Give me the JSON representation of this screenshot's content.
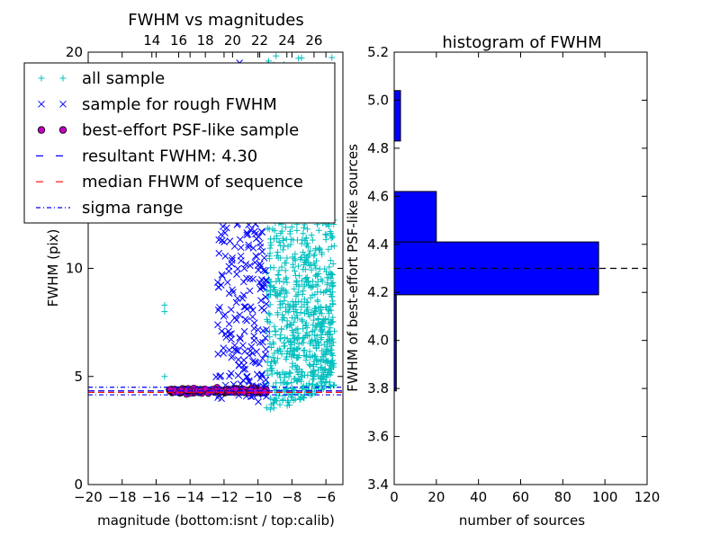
{
  "chart_data": [
    {
      "type": "scatter",
      "title": "FWHM vs magnitudes",
      "xlabel": "magnitude (bottom:isnt / top:calib)",
      "ylabel": "FWHM (pix)",
      "xlim": [
        -20,
        -5
      ],
      "ylim": [
        0,
        20
      ],
      "x_ticks": [
        "−20",
        "−18",
        "−16",
        "−14",
        "−12",
        "−10",
        "−8",
        "−6"
      ],
      "x_tick_values": [
        -20,
        -18,
        -16,
        -14,
        -12,
        -10,
        -8,
        -6
      ],
      "y_ticks": [
        "0",
        "5",
        "10",
        "20"
      ],
      "y_tick_values": [
        0,
        5,
        10,
        20
      ],
      "top_axis_ticks": [
        "14",
        "16",
        "18",
        "20",
        "22",
        "24",
        "26"
      ],
      "top_axis_tick_positions_mag": [
        -16.25,
        -14.67,
        -13.1,
        -11.5,
        -9.9,
        -8.3,
        -6.7
      ],
      "legend_position": "top-left",
      "legend": [
        {
          "label": "all sample",
          "marker": "plus",
          "color": "#00bfbf"
        },
        {
          "label": "sample for rough FWHM",
          "marker": "x",
          "color": "#0000ff"
        },
        {
          "label": "best-effort PSF-like sample",
          "marker": "circle",
          "color": "#bf00bf"
        },
        {
          "label": "resultant FWHM: 4.30",
          "marker": "dashed",
          "color": "#0000ff"
        },
        {
          "label": "median FHWM of sequence",
          "marker": "dashed",
          "color": "#ff0000"
        },
        {
          "label": "sigma range",
          "marker": "dashdot",
          "color": "#0000ff"
        }
      ],
      "lines": {
        "resultant_fwhm": 4.3,
        "median_fwhm": 4.3,
        "sigma_range": [
          4.15,
          4.5
        ]
      },
      "series": [
        {
          "name": "all sample",
          "color": "#00bfbf",
          "x_range": [
            -9.5,
            -5.5
          ],
          "y_range": [
            2.5,
            20
          ],
          "outliers": [
            [
              -15.5,
              8.3
            ],
            [
              -15.5,
              8.0
            ],
            [
              -15.5,
              5.0
            ]
          ]
        },
        {
          "name": "sample for rough FWHM",
          "color": "#0000ff",
          "x_range": [
            -12.5,
            -9.5
          ],
          "y_range": [
            3.5,
            20
          ]
        },
        {
          "name": "best-effort PSF-like sample",
          "color": "#bf00bf",
          "x_range": [
            -15.5,
            -9.5
          ],
          "y_range": [
            4.15,
            4.5
          ]
        }
      ]
    },
    {
      "type": "bar",
      "orientation": "horizontal",
      "title": "histogram of FWHM",
      "xlabel": "number of sources",
      "ylabel": "FWHM of best-effort PSF-like sources",
      "xlim": [
        0,
        120
      ],
      "ylim": [
        3.4,
        5.2
      ],
      "x_ticks": [
        "0",
        "20",
        "40",
        "60",
        "80",
        "100",
        "120"
      ],
      "x_tick_values": [
        0,
        20,
        40,
        60,
        80,
        100,
        120
      ],
      "y_ticks": [
        "3.4",
        "3.6",
        "3.8",
        "4.0",
        "4.2",
        "4.4",
        "4.6",
        "4.8",
        "5.0",
        "5.2"
      ],
      "y_tick_values": [
        3.4,
        3.6,
        3.8,
        4.0,
        4.2,
        4.4,
        4.6,
        4.8,
        5.0,
        5.2
      ],
      "bar_color": "#0000ff",
      "bins": [
        {
          "y0": 3.79,
          "y1": 4.0,
          "value": 1
        },
        {
          "y0": 4.0,
          "y1": 4.19,
          "value": 1
        },
        {
          "y0": 4.19,
          "y1": 4.41,
          "value": 97
        },
        {
          "y0": 4.41,
          "y1": 4.62,
          "value": 20
        },
        {
          "y0": 4.83,
          "y1": 5.04,
          "value": 3
        }
      ],
      "reference_line": 4.3
    }
  ]
}
